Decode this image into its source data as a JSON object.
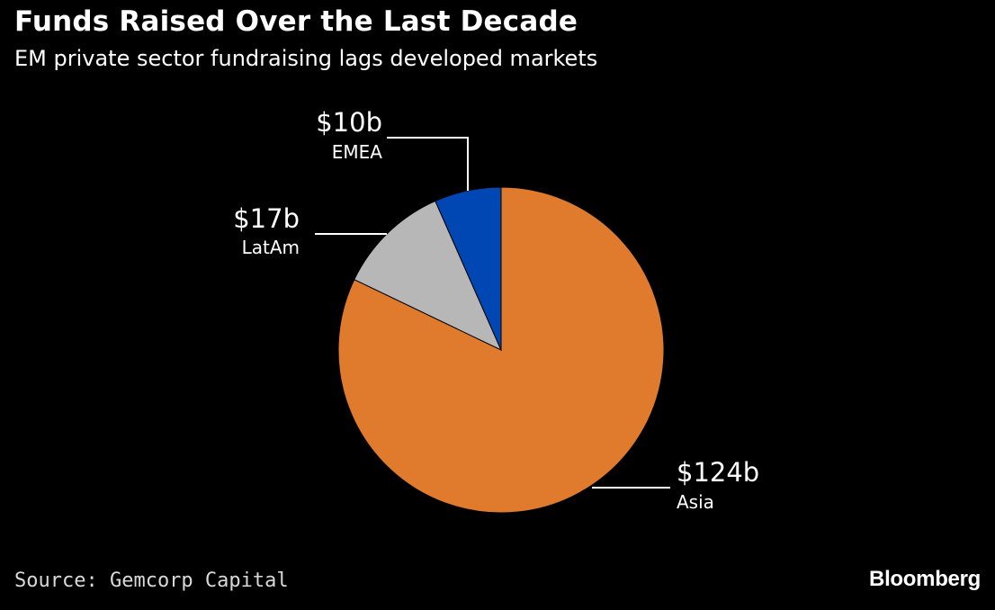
{
  "header": {
    "title": "Funds Raised Over the Last Decade",
    "subtitle": "EM private sector fundraising lags developed markets"
  },
  "footer": {
    "source": "Source: Gemcorp Capital",
    "brand": "Bloomberg"
  },
  "chart_data": {
    "type": "pie",
    "title": "Funds Raised Over the Last Decade",
    "subtitle": "EM private sector fundraising lags developed markets",
    "units": "$ billions",
    "slices": [
      {
        "label": "Asia",
        "value": 124,
        "value_label": "$124b",
        "color": "#e07b2e"
      },
      {
        "label": "LatAm",
        "value": 17,
        "value_label": "$17b",
        "color": "#b7b7b7"
      },
      {
        "label": "EMEA",
        "value": 10,
        "value_label": "$10b",
        "color": "#0047b3"
      }
    ],
    "start_angle": "12 o'clock",
    "direction": "clockwise"
  }
}
